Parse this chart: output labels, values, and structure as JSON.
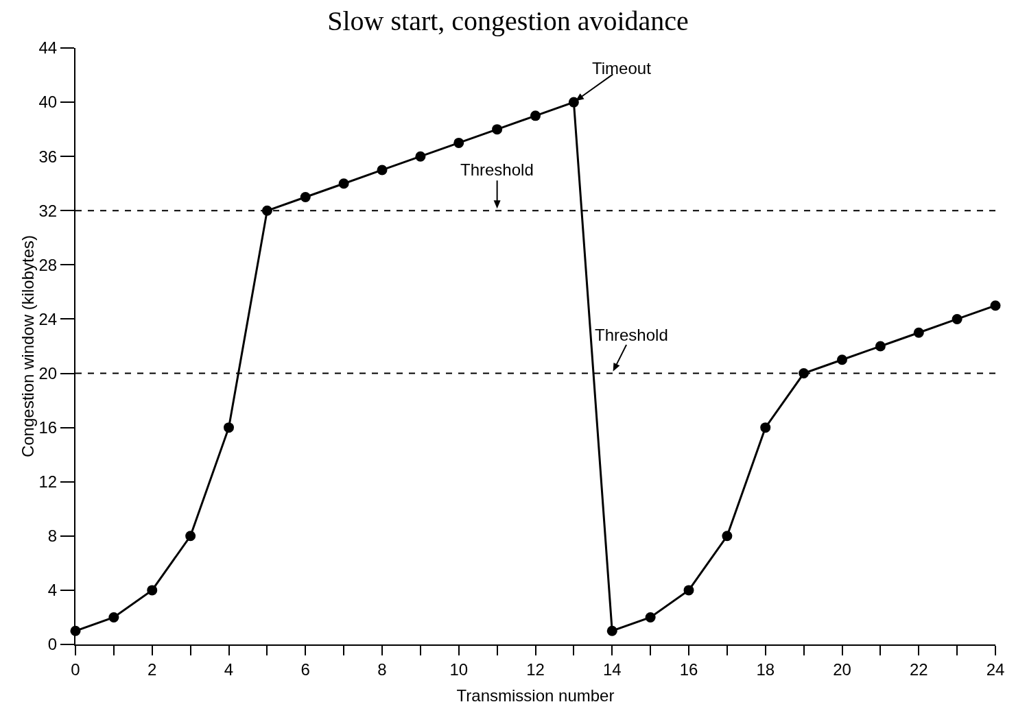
{
  "chart_data": {
    "type": "line",
    "title": "Slow start, congestion avoidance",
    "xlabel": "Transmission number",
    "ylabel": "Congestion window (kilobytes)",
    "x": [
      0,
      1,
      2,
      3,
      4,
      5,
      6,
      7,
      8,
      9,
      10,
      11,
      12,
      13,
      14,
      15,
      16,
      17,
      18,
      19,
      20,
      21,
      22,
      23,
      24
    ],
    "series": [
      {
        "color": "#000000",
        "values": [
          1,
          2,
          4,
          8,
          16,
          32,
          33,
          34,
          35,
          36,
          37,
          38,
          39,
          40,
          1,
          2,
          4,
          8,
          16,
          20,
          21,
          22,
          23,
          24,
          25
        ]
      }
    ],
    "xlim": [
      0,
      24
    ],
    "ylim": [
      0,
      44
    ],
    "xticks": [
      0,
      {
        "value": 1,
        "label": null
      },
      2,
      {
        "value": 3,
        "label": null
      },
      4,
      {
        "value": 5,
        "label": null
      },
      6,
      {
        "value": 7,
        "label": null
      },
      8,
      {
        "value": 9,
        "label": null
      },
      10,
      {
        "value": 11,
        "label": null
      },
      12,
      {
        "value": 13,
        "label": null
      },
      14,
      {
        "value": 15,
        "label": null
      },
      16,
      {
        "value": 17,
        "label": null
      },
      18,
      {
        "value": 19,
        "label": null
      },
      20,
      {
        "value": 21,
        "label": null
      },
      22,
      {
        "value": 23,
        "label": null
      },
      24
    ],
    "yticks": [
      0,
      4,
      8,
      12,
      16,
      20,
      24,
      28,
      32,
      36,
      40,
      44
    ],
    "ref_lines": [
      {
        "axis": "y",
        "value": 32,
        "line_style": "dashed",
        "color": "#000000"
      },
      {
        "axis": "y",
        "value": 20,
        "line_style": "dashed",
        "color": "#000000"
      }
    ],
    "annotations": [
      {
        "text": "Timeout",
        "x": 13,
        "y": 40
      },
      {
        "text": "Threshold",
        "x": 11,
        "y": 32
      },
      {
        "text": "Threshold",
        "x": 14,
        "y": 20
      }
    ],
    "marker": "circle",
    "line_style": "solid",
    "grid": false,
    "legend": false
  }
}
